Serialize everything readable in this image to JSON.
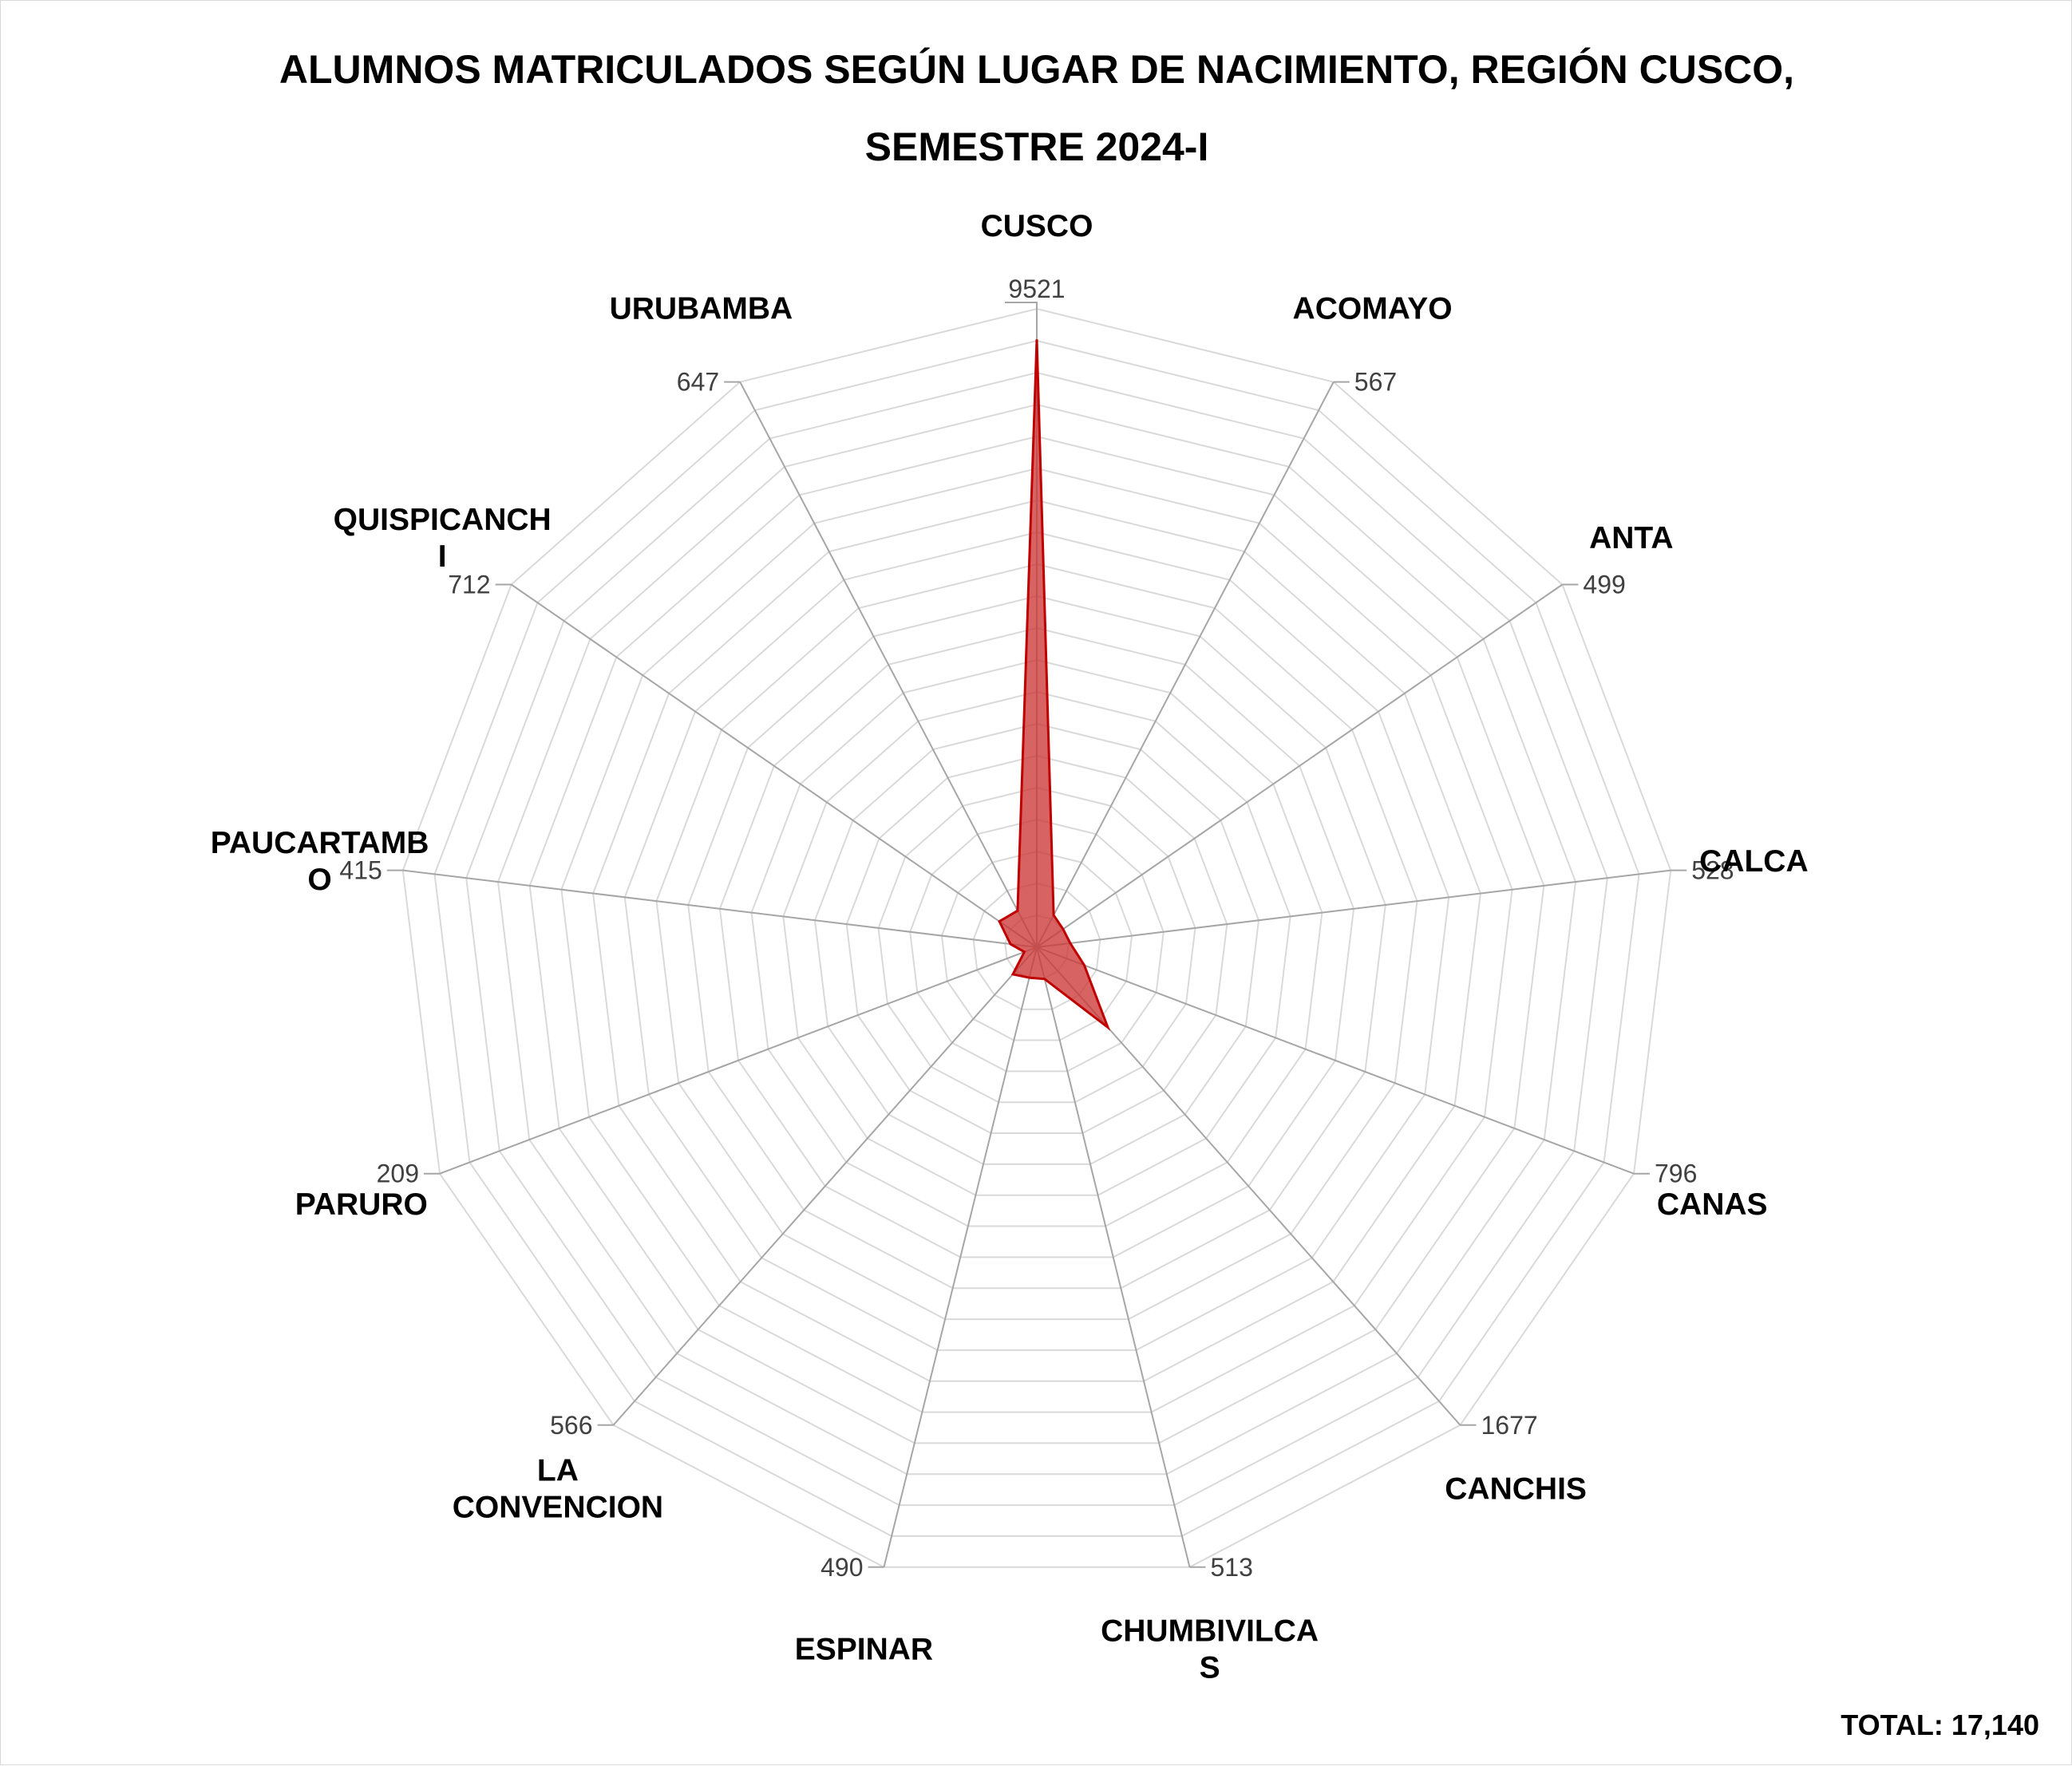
{
  "chart_data": {
    "type": "radar",
    "title_lines": [
      "ALUMNOS MATRICULADOS SEGÚN LUGAR DE NACIMIENTO, REGIÓN CUSCO,",
      "SEMESTRE 2024-I"
    ],
    "categories": [
      {
        "lines": [
          "CUSCO"
        ]
      },
      {
        "lines": [
          "ACOMAYO"
        ]
      },
      {
        "lines": [
          "ANTA"
        ]
      },
      {
        "lines": [
          "CALCA"
        ]
      },
      {
        "lines": [
          "CANAS"
        ]
      },
      {
        "lines": [
          "CANCHIS"
        ]
      },
      {
        "lines": [
          "CHUMBIVILCA",
          "S"
        ]
      },
      {
        "lines": [
          "ESPINAR"
        ]
      },
      {
        "lines": [
          "LA",
          "CONVENCION"
        ]
      },
      {
        "lines": [
          "PARURO"
        ]
      },
      {
        "lines": [
          "PAUCARTAMB",
          "O"
        ]
      },
      {
        "lines": [
          "QUISPICANCH",
          "I"
        ]
      },
      {
        "lines": [
          "URUBAMBA"
        ]
      }
    ],
    "values": [
      9521,
      567,
      499,
      528,
      796,
      1677,
      513,
      490,
      566,
      209,
      415,
      712,
      647
    ],
    "data_labels": [
      "9521",
      "567",
      "499",
      "528",
      "796",
      "1677",
      "513",
      "490",
      "566",
      "209",
      "415",
      "712",
      "647"
    ],
    "rmax": 10000,
    "grid_rings": 20,
    "legend": "none",
    "series_color": "#c00000",
    "series_fill": "rgba(205, 55, 55, 0.78)",
    "grid_color": "#d9d9d9",
    "axis_color": "#a6a6a6"
  },
  "footer": {
    "total": "TOTAL: 17,140"
  }
}
